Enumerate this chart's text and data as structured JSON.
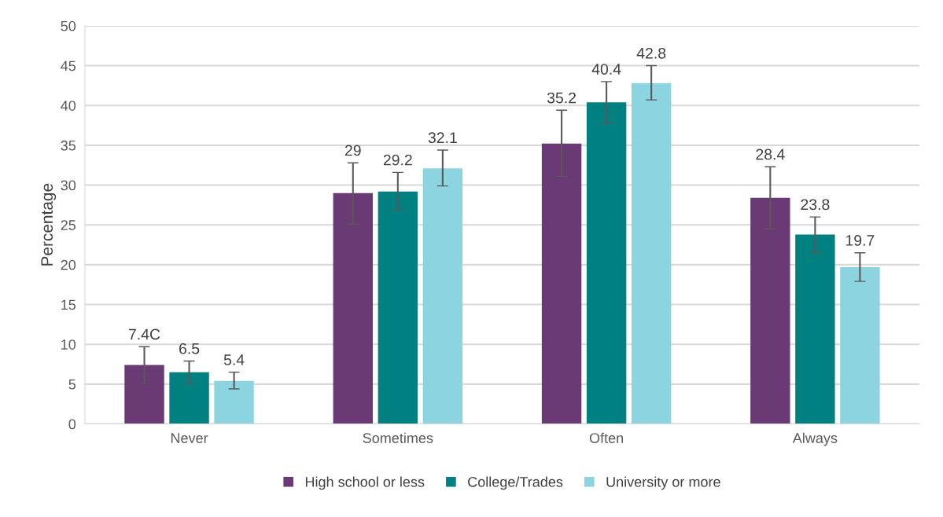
{
  "chart_data": {
    "type": "bar",
    "ylabel": "Percentage",
    "categories": [
      "Never",
      "Sometimes",
      "Often",
      "Always"
    ],
    "series": [
      {
        "name": "High school or less",
        "color": "#6a3a75",
        "values": [
          7.4,
          29,
          35.2,
          28.4
        ],
        "errors": [
          [
            5.1,
            9.7
          ],
          [
            25.1,
            32.8
          ],
          [
            31.1,
            39.4
          ],
          [
            24.5,
            32.3
          ]
        ],
        "value_labels": [
          "7.4C",
          "29",
          "35.2",
          "28.4"
        ]
      },
      {
        "name": "College/Trades",
        "color": "#008080",
        "values": [
          6.5,
          29.2,
          40.4,
          23.8
        ],
        "errors": [
          [
            5.1,
            7.9
          ],
          [
            26.9,
            31.6
          ],
          [
            37.8,
            43.0
          ],
          [
            21.6,
            26.0
          ]
        ],
        "value_labels": [
          "6.5",
          "29.2",
          "40.4",
          "23.8"
        ]
      },
      {
        "name": "University or more",
        "color": "#8cd4e0",
        "values": [
          5.4,
          32.1,
          42.8,
          19.7
        ],
        "errors": [
          [
            4.4,
            6.5
          ],
          [
            29.9,
            34.4
          ],
          [
            40.7,
            45.0
          ],
          [
            17.9,
            21.5
          ]
        ],
        "value_labels": [
          "5.4",
          "32.1",
          "42.8",
          "19.7"
        ]
      }
    ],
    "ylim": [
      0,
      50
    ],
    "yticks": [
      0,
      5,
      10,
      15,
      20,
      25,
      30,
      35,
      40,
      45,
      50
    ],
    "grid": "y",
    "legend": "bottom"
  }
}
